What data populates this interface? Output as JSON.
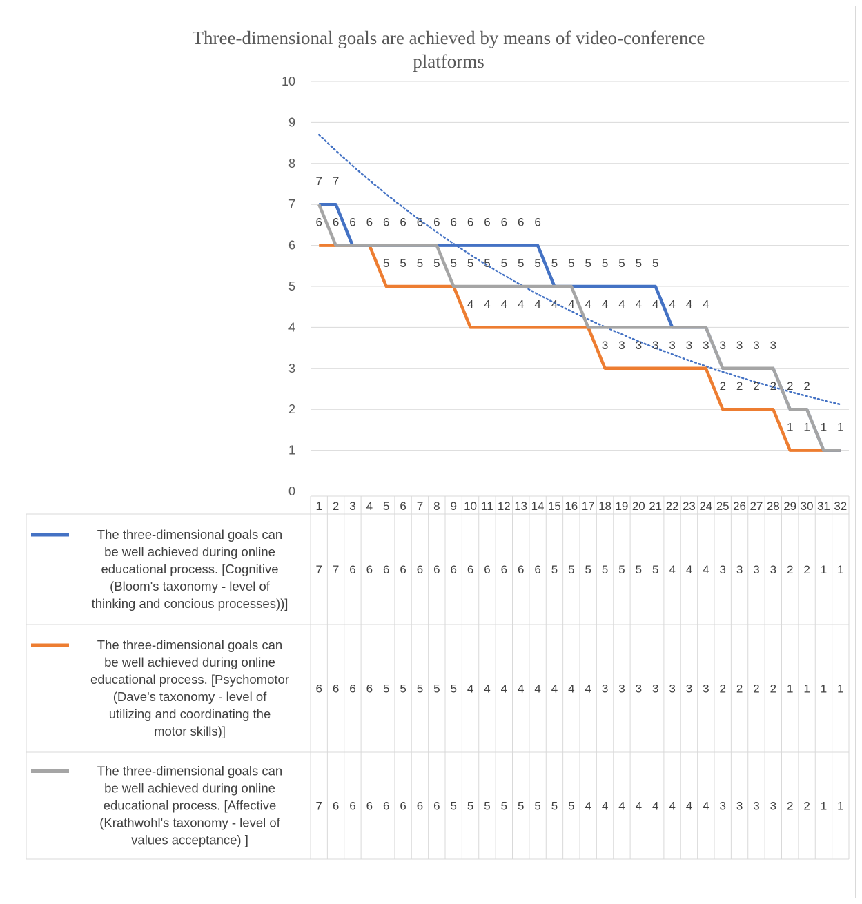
{
  "chart_data": {
    "type": "line",
    "title": "Three-dimensional goals are achieved by means of video-conference platforms",
    "title_lines": [
      "Three-dimensional goals are achieved by means of video-conference",
      "platforms"
    ],
    "xlabel": "",
    "ylabel": "",
    "ylim": [
      0,
      10
    ],
    "yticks": [
      0,
      1,
      2,
      3,
      4,
      5,
      6,
      7,
      8,
      9,
      10
    ],
    "categories": [
      "1",
      "2",
      "3",
      "4",
      "5",
      "6",
      "7",
      "8",
      "9",
      "10",
      "11",
      "12",
      "13",
      "14",
      "15",
      "16",
      "17",
      "18",
      "19",
      "20",
      "21",
      "22",
      "23",
      "24",
      "25",
      "26",
      "27",
      "28",
      "29",
      "30",
      "31",
      "32"
    ],
    "grid": true,
    "legend_placement": "data table below chart",
    "series": [
      {
        "name": "The three-dimensional goals can be well achieved during online educational process. [Cognitive (Bloom's taxonomy - level of thinking and concious processes))]",
        "legend_lines": [
          "The three-dimensional goals can",
          "be well achieved during online",
          "educational process. [Cognitive",
          "(Bloom's taxonomy - level of",
          "thinking and concious processes))]"
        ],
        "color": "#4472c4",
        "values": [
          7,
          7,
          6,
          6,
          6,
          6,
          6,
          6,
          6,
          6,
          6,
          6,
          6,
          6,
          5,
          5,
          5,
          5,
          5,
          5,
          5,
          4,
          4,
          4,
          3,
          3,
          3,
          3,
          2,
          2,
          1,
          1
        ]
      },
      {
        "name": "The three-dimensional goals can be well achieved during online educational process. [Psychomotor (Dave's taxonomy - level of utilizing and coordinating the motor skills)]",
        "legend_lines": [
          "The three-dimensional goals can",
          "be well achieved during online",
          "educational process. [Psychomotor",
          "(Dave's taxonomy - level of",
          "utilizing and coordinating the",
          "motor skills)]"
        ],
        "color": "#ed7d31",
        "values": [
          6,
          6,
          6,
          6,
          5,
          5,
          5,
          5,
          5,
          4,
          4,
          4,
          4,
          4,
          4,
          4,
          4,
          3,
          3,
          3,
          3,
          3,
          3,
          3,
          2,
          2,
          2,
          2,
          1,
          1,
          1,
          1
        ]
      },
      {
        "name": "The three-dimensional goals can be well achieved during online educational process. [Affective (Krathwohl's taxonomy - level of values acceptance) ]",
        "legend_lines": [
          "The three-dimensional goals can",
          "be well achieved during online",
          "educational process. [Affective",
          "(Krathwohl's taxonomy - level of",
          "values acceptance) ]"
        ],
        "color": "#a5a5a5",
        "values": [
          7,
          6,
          6,
          6,
          6,
          6,
          6,
          6,
          5,
          5,
          5,
          5,
          5,
          5,
          5,
          5,
          4,
          4,
          4,
          4,
          4,
          4,
          4,
          4,
          3,
          3,
          3,
          3,
          2,
          2,
          1,
          1
        ]
      }
    ],
    "trendline": {
      "type": "exponential",
      "style": "dotted",
      "color": "#4472c4",
      "start_value": 8.7,
      "end_value": 2.12
    },
    "data_labels": {
      "row1": {
        "value": 7,
        "x": [
          1,
          2
        ]
      },
      "row2": {
        "value": 6,
        "x": [
          1,
          2,
          3,
          4,
          5,
          6,
          7,
          8,
          9,
          10,
          11,
          12,
          13,
          14
        ]
      },
      "row3": {
        "value": 5,
        "x": [
          5,
          6,
          7,
          8,
          9,
          10,
          11,
          12,
          13,
          14,
          15,
          16,
          17,
          18,
          19,
          20,
          21
        ]
      },
      "row4": {
        "value": 4,
        "x": [
          10,
          11,
          12,
          13,
          14,
          15,
          16,
          17,
          18,
          19,
          20,
          21,
          22,
          23,
          24
        ]
      },
      "row5": {
        "value": 3,
        "x": [
          18,
          19,
          20,
          21,
          22,
          23,
          24,
          25,
          26,
          27,
          28
        ]
      },
      "row6": {
        "value": 2,
        "x": [
          25,
          26,
          27,
          28,
          29,
          30
        ]
      },
      "row7": {
        "value": 1,
        "x": [
          29,
          30,
          31,
          32
        ]
      }
    }
  }
}
